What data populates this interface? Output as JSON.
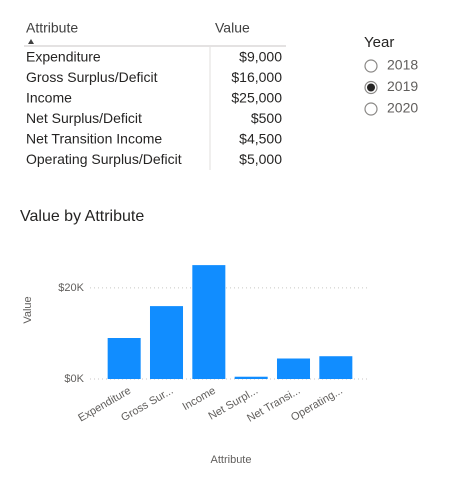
{
  "table": {
    "columns": [
      "Attribute",
      "Value"
    ],
    "rows": [
      [
        "Expenditure",
        "$9,000"
      ],
      [
        "Gross Surplus/Deficit",
        "$16,000"
      ],
      [
        "Income",
        "$25,000"
      ],
      [
        "Net Surplus/Deficit",
        "$500"
      ],
      [
        "Net Transition Income",
        "$4,500"
      ],
      [
        "Operating Surplus/Deficit",
        "$5,000"
      ]
    ]
  },
  "slicer": {
    "title": "Year",
    "options": [
      "2018",
      "2019",
      "2020"
    ],
    "selected": "2019"
  },
  "chart_data": {
    "type": "bar",
    "title": "Value by Attribute",
    "x_label": "Attribute",
    "y_label": "Value",
    "categories": [
      "Expenditure",
      "Gross Sur...",
      "Income",
      "Net Surpl...",
      "Net Transi...",
      "Operating..."
    ],
    "values": [
      9000,
      16000,
      25000,
      500,
      4500,
      5000
    ],
    "color": "#118dff",
    "ylim": [
      0,
      27000
    ],
    "yticks": [
      {
        "value": 0,
        "label": "$0K"
      },
      {
        "value": 20000,
        "label": "$20K"
      }
    ],
    "grid": true
  }
}
